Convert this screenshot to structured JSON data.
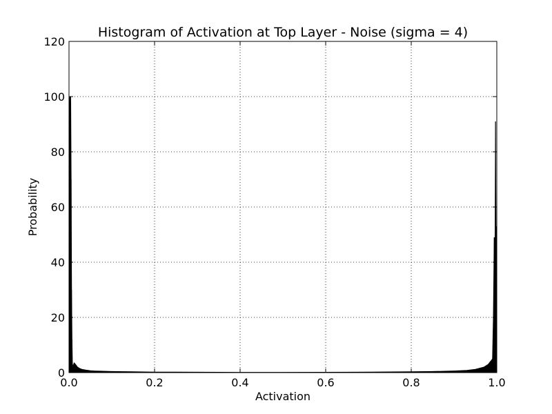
{
  "chart_data": {
    "type": "area",
    "title": "Histogram of Activation at Top Layer - Noise (sigma = 4)",
    "xlabel": "Activation",
    "ylabel": "Probability",
    "xlim": [
      0.0,
      1.0
    ],
    "ylim": [
      0,
      120
    ],
    "x_ticks": [
      0.0,
      0.2,
      0.4,
      0.6,
      0.8,
      1.0
    ],
    "x_tick_labels": [
      "0.0",
      "0.2",
      "0.4",
      "0.6",
      "0.8",
      "1.0"
    ],
    "y_ticks": [
      0,
      20,
      40,
      60,
      80,
      100,
      120
    ],
    "y_tick_labels": [
      "0",
      "20",
      "40",
      "60",
      "80",
      "100",
      "120"
    ],
    "grid": true,
    "series_color": "#000000",
    "series": [
      {
        "x": [
          0.0,
          0.001,
          0.002,
          0.003,
          0.004,
          0.005,
          0.006,
          0.007,
          0.008,
          0.01,
          0.012,
          0.015,
          0.02,
          0.025,
          0.03,
          0.04,
          0.05,
          0.06,
          0.08,
          0.1,
          0.15,
          0.2,
          0.3,
          0.4,
          0.5,
          0.6,
          0.7,
          0.8,
          0.85,
          0.9,
          0.93,
          0.95,
          0.97,
          0.98,
          0.985,
          0.99,
          0.992,
          0.994,
          0.995,
          0.996,
          0.997,
          0.998,
          0.999,
          1.0
        ],
        "values": [
          100,
          96,
          100,
          88,
          100,
          70,
          30,
          12,
          3,
          2.5,
          3.5,
          3,
          2,
          1.5,
          1.2,
          0.9,
          0.7,
          0.6,
          0.5,
          0.4,
          0.3,
          0.2,
          0.15,
          0.1,
          0.1,
          0.12,
          0.2,
          0.3,
          0.4,
          0.6,
          0.8,
          1.2,
          2.0,
          3.0,
          4.0,
          5.0,
          20,
          49,
          45,
          50,
          91,
          52,
          53,
          50
        ]
      }
    ]
  }
}
